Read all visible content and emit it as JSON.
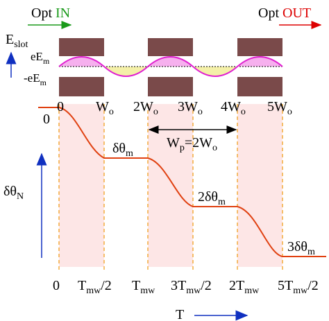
{
  "header": {
    "input": {
      "prefix": "Opt",
      "label": "IN"
    },
    "output": {
      "prefix": "Opt",
      "label": "OUT"
    }
  },
  "field": {
    "axis": [
      "E",
      "slot"
    ],
    "positive": [
      "eE",
      "m"
    ],
    "negative": [
      "-eE",
      "m"
    ]
  },
  "position_axis": {
    "ticks": [
      [
        "0"
      ],
      [
        "W",
        "o"
      ],
      [
        "2W",
        "o"
      ],
      [
        "3W",
        "o"
      ],
      [
        "4W",
        "o"
      ],
      [
        "5W",
        "o"
      ]
    ],
    "period": [
      "W",
      "p",
      "=2W",
      "o"
    ]
  },
  "rotation": {
    "axis": [
      "δθ",
      "N"
    ],
    "start": [
      "0"
    ],
    "steps": [
      [
        "δθ",
        "m"
      ],
      [
        "2δθ",
        "m"
      ],
      [
        "3δθ",
        "m"
      ]
    ]
  },
  "time_axis": {
    "ticks": [
      [
        "0"
      ],
      [
        "T",
        "mw",
        "/2"
      ],
      [
        "T",
        "mw"
      ],
      [
        "3T",
        "mw",
        "/2"
      ],
      [
        "2T",
        "mw"
      ],
      [
        "5T",
        "mw",
        "/2"
      ]
    ],
    "label": [
      "T"
    ]
  }
}
